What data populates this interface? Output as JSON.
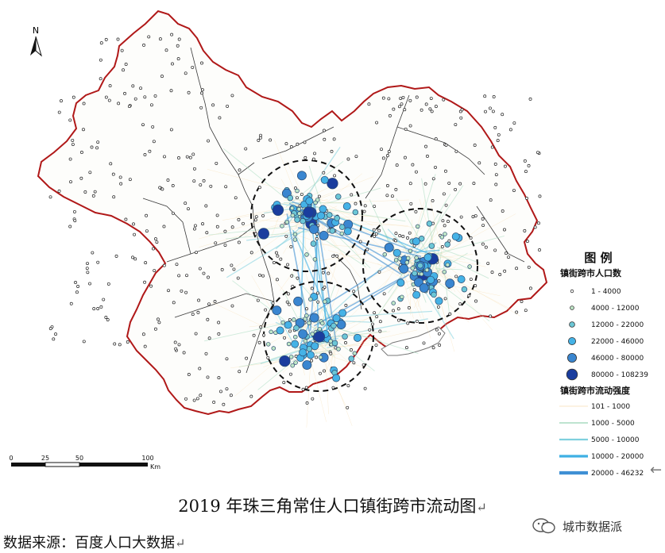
{
  "north_label": "N",
  "legend": {
    "title": "图 例",
    "population": {
      "title": "镇街跨市人口数",
      "items": [
        {
          "label": "1 - 4000",
          "color": "#ffffff"
        },
        {
          "label": "4000 - 12000",
          "color": "#bfe6c7"
        },
        {
          "label": "12000 - 22000",
          "color": "#6cc7d6"
        },
        {
          "label": "22000 - 46000",
          "color": "#45b2e6"
        },
        {
          "label": "46000 - 80000",
          "color": "#3a86d0"
        },
        {
          "label": "80000 - 108239",
          "color": "#1a3d9e"
        }
      ]
    },
    "flow": {
      "title": "镇街跨市流动强度",
      "items": [
        {
          "label": "101 - 1000",
          "color": "#f7ddb0"
        },
        {
          "label": "1000 - 5000",
          "color": "#a8dcc0"
        },
        {
          "label": "5000 - 10000",
          "color": "#7fd0de"
        },
        {
          "label": "10000 - 20000",
          "color": "#3fb0e4"
        },
        {
          "label": "20000 - 46232",
          "color": "#3f90d4"
        }
      ]
    }
  },
  "scale_bar": {
    "ticks": [
      "0",
      "25",
      "50",
      "100"
    ],
    "unit": "Km"
  },
  "caption": "2019 年珠三角常住人口镇街跨市流动图",
  "source": "数据来源：百度人口大数据",
  "watermark": "城市数据派",
  "colors": {
    "boundary": "#b01818",
    "inner_boundary": "#333333",
    "cluster_circle": "#111111"
  },
  "icons": {
    "north": "north-arrow-icon",
    "paragraph": "return-arrow-icon",
    "watermark": "wechat-icon"
  }
}
